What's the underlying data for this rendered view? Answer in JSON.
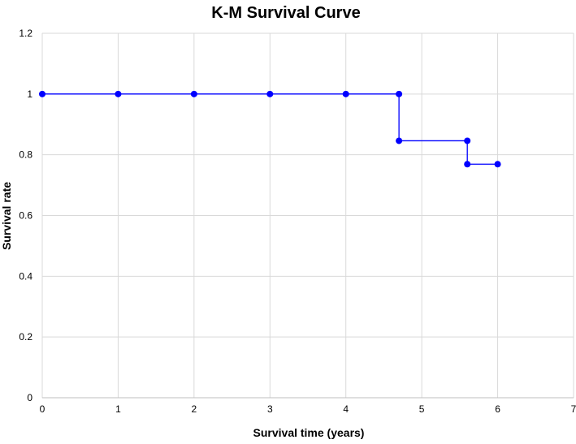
{
  "chart_data": {
    "type": "line",
    "title": "K-M Survival Curve",
    "xlabel": "Survival time (years)",
    "ylabel": "Survival rate",
    "xlim": [
      0,
      7
    ],
    "ylim": [
      0,
      1.2
    ],
    "x_ticks": [
      "0",
      "1",
      "2",
      "3",
      "4",
      "5",
      "6",
      "7"
    ],
    "y_ticks": [
      "0",
      "0.2",
      "0.4",
      "0.6",
      "0.8",
      "1",
      "1.2"
    ],
    "grid": true,
    "step": true,
    "series": [
      {
        "color": "#0000ff",
        "points": [
          {
            "x": 0,
            "y": 1
          },
          {
            "x": 1,
            "y": 1
          },
          {
            "x": 2,
            "y": 1
          },
          {
            "x": 3,
            "y": 1
          },
          {
            "x": 4,
            "y": 1
          },
          {
            "x": 4.7,
            "y": 1
          },
          {
            "x": 4.7,
            "y": 0.846
          },
          {
            "x": 5.6,
            "y": 0.846
          },
          {
            "x": 5.6,
            "y": 0.769
          },
          {
            "x": 6,
            "y": 0.769
          }
        ]
      }
    ]
  }
}
